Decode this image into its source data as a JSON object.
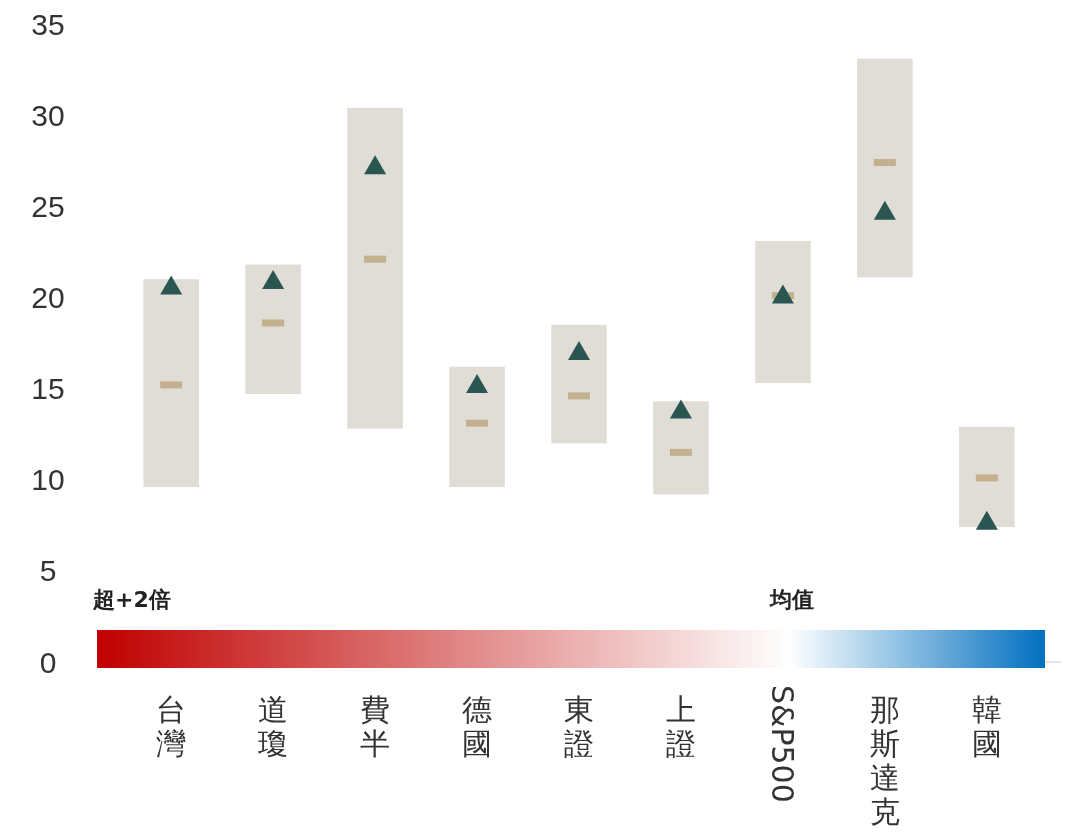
{
  "chart_data": {
    "type": "bar",
    "categories": [
      "台灣",
      "道瓊",
      "費半",
      "德國",
      "東證",
      "上證",
      "S&P500",
      "那斯達克",
      "韓國"
    ],
    "series": [
      {
        "color": "#e0ddd6",
        "base": [
          9.6,
          14.7,
          12.8,
          9.6,
          12.0,
          9.2,
          15.3,
          21.1,
          7.4
        ],
        "values": [
          11.4,
          7.1,
          17.6,
          6.6,
          6.5,
          5.1,
          7.8,
          12.0,
          5.5
        ]
      },
      {
        "type": "scatter",
        "marker": "square",
        "color": "#c2b08e",
        "values": [
          15.2,
          18.6,
          22.1,
          13.1,
          14.6,
          11.5,
          20.1,
          27.4,
          10.1
        ]
      },
      {
        "type": "scatter",
        "marker": "triangle",
        "color": "#2a5550",
        "values": [
          20.6,
          20.9,
          27.2,
          15.2,
          17.0,
          13.8,
          20.1,
          24.7,
          7.7
        ]
      }
    ],
    "ylim": [
      0,
      35
    ],
    "yticks": [
      0,
      5,
      10,
      15,
      20,
      25,
      30,
      35
    ],
    "grid": false,
    "annotations": [
      "超+2倍",
      "均值"
    ]
  }
}
